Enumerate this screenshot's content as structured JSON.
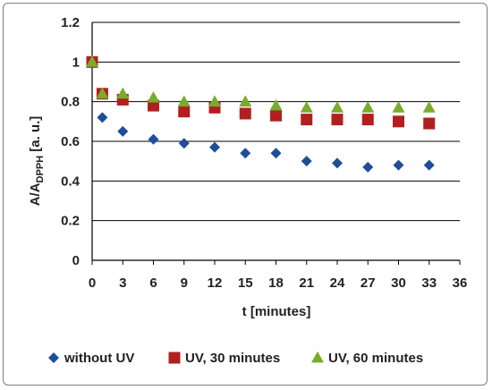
{
  "chart_data": {
    "type": "scatter",
    "xlabel": "t [minutes]",
    "ylabel": {
      "main": "A/A",
      "sub": "DPPH",
      "suffix": " [a. u.]"
    },
    "xlim": [
      0,
      36
    ],
    "ylim": [
      0,
      1.2
    ],
    "x_ticks": [
      "0",
      "3",
      "6",
      "9",
      "12",
      "15",
      "18",
      "21",
      "24",
      "27",
      "30",
      "33",
      "36"
    ],
    "y_ticks": [
      "0",
      "0.2",
      "0.4",
      "0.6",
      "0.8",
      "1",
      "1.2"
    ],
    "grid": "horizontal",
    "legend_position": "bottom",
    "series": [
      {
        "name": "without UV",
        "marker": "diamond",
        "color": "#1f4e99",
        "x": [
          0,
          1,
          3,
          6,
          9,
          12,
          15,
          18,
          21,
          24,
          27,
          30,
          33
        ],
        "y": [
          1.0,
          0.72,
          0.65,
          0.61,
          0.59,
          0.57,
          0.54,
          0.54,
          0.5,
          0.49,
          0.47,
          0.48,
          0.48
        ]
      },
      {
        "name": "UV, 30 minutes",
        "marker": "square",
        "color": "#b21f1f",
        "x": [
          0,
          1,
          3,
          6,
          9,
          12,
          15,
          18,
          21,
          24,
          27,
          30,
          33
        ],
        "y": [
          1.0,
          0.84,
          0.81,
          0.78,
          0.75,
          0.77,
          0.74,
          0.73,
          0.71,
          0.71,
          0.71,
          0.7,
          0.69
        ]
      },
      {
        "name": "UV, 60 minutes",
        "marker": "triangle",
        "color": "#7aab2e",
        "x": [
          0,
          1,
          3,
          6,
          9,
          12,
          15,
          18,
          21,
          24,
          27,
          30,
          33
        ],
        "y": [
          1.0,
          0.84,
          0.84,
          0.82,
          0.8,
          0.8,
          0.8,
          0.78,
          0.77,
          0.77,
          0.77,
          0.77,
          0.77
        ]
      }
    ]
  }
}
